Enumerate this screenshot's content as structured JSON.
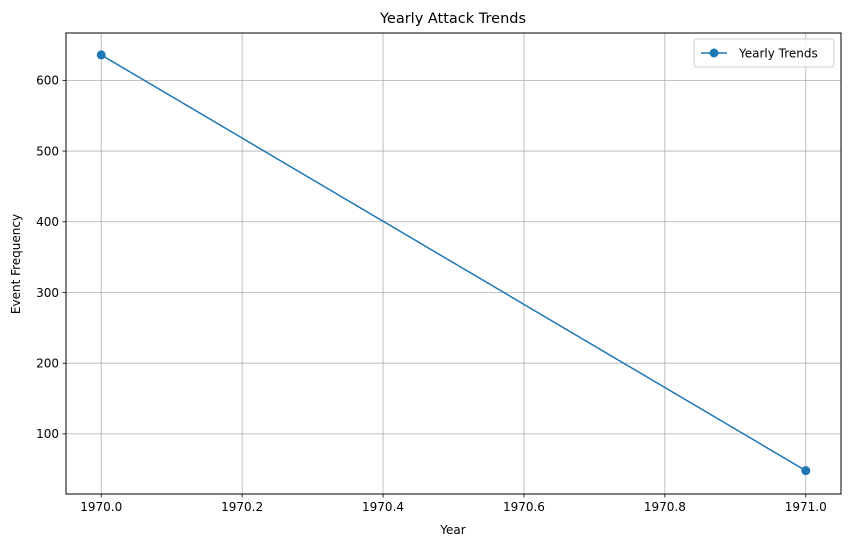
{
  "chart_data": {
    "type": "line",
    "title": "Yearly Attack Trends",
    "xlabel": "Year",
    "ylabel": "Event Frequency",
    "xlim": [
      1969.95,
      1971.05
    ],
    "ylim": [
      15,
      667
    ],
    "x_ticks": [
      1970.0,
      1970.2,
      1970.4,
      1970.6,
      1970.8,
      1971.0
    ],
    "x_tick_labels": [
      "1970.0",
      "1970.2",
      "1970.4",
      "1970.6",
      "1970.8",
      "1971.0"
    ],
    "y_ticks": [
      100,
      200,
      300,
      400,
      500,
      600
    ],
    "y_tick_labels": [
      "100",
      "200",
      "300",
      "400",
      "500",
      "600"
    ],
    "grid": true,
    "legend_position": "top-right",
    "series": [
      {
        "name": "Yearly Trends",
        "color": "#1f77b4",
        "marker": "circle",
        "x": [
          1970,
          1971
        ],
        "y": [
          636,
          48
        ]
      }
    ]
  }
}
